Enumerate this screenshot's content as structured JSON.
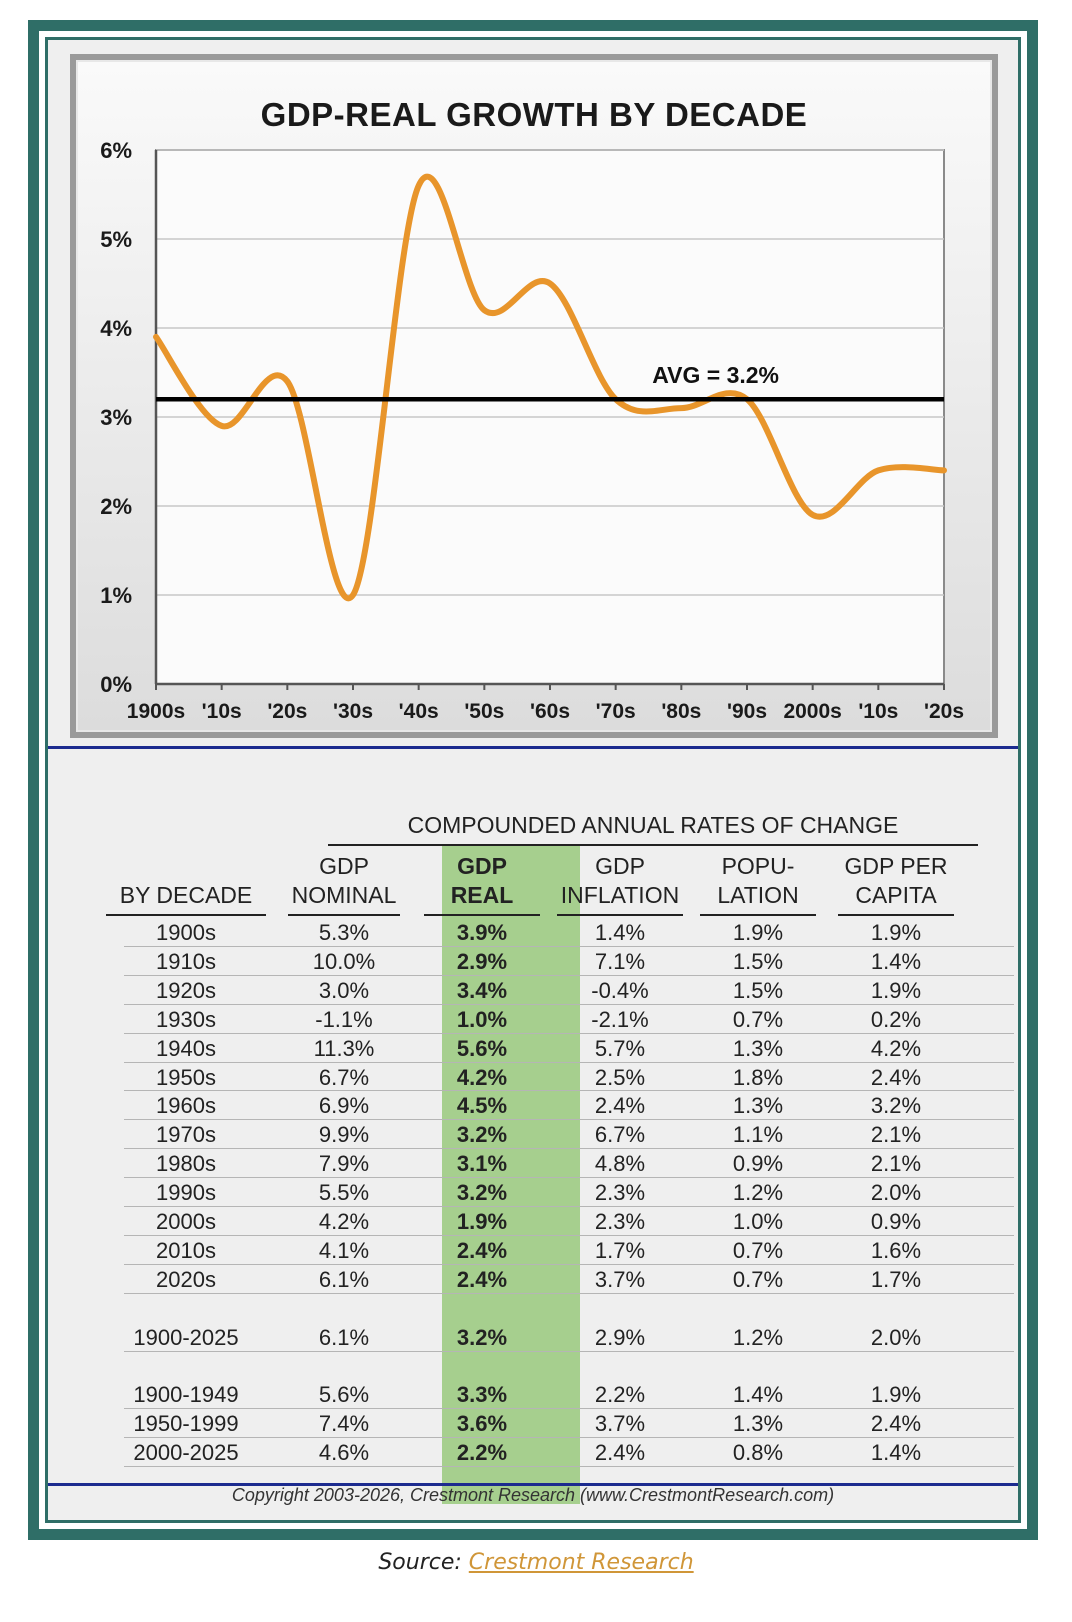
{
  "chart_data": {
    "type": "line",
    "title": "GDP-REAL GROWTH BY DECADE",
    "categories": [
      "1900s",
      "'10s",
      "'20s",
      "'30s",
      "'40s",
      "'50s",
      "'60s",
      "'70s",
      "'80s",
      "'90s",
      "2000s",
      "'10s",
      "'20s"
    ],
    "series": [
      {
        "values": [
          3.9,
          2.9,
          3.4,
          1.0,
          5.6,
          4.2,
          4.5,
          3.2,
          3.1,
          3.2,
          1.9,
          2.4,
          2.4
        ]
      }
    ],
    "y_ticks": [
      "0%",
      "1%",
      "2%",
      "3%",
      "4%",
      "5%",
      "6%"
    ],
    "ylim": [
      0,
      6
    ],
    "average": {
      "value": 3.2,
      "label": "AVG = 3.2%"
    },
    "grid": true,
    "colors": {
      "line": "#e8952b",
      "average": "#000000",
      "grid": "#c8c8c8"
    }
  },
  "table": {
    "super_header": "COMPOUNDED ANNUAL RATES OF CHANGE",
    "headers": [
      [
        "BY DECADE"
      ],
      [
        "GDP",
        "NOMINAL"
      ],
      [
        "GDP",
        "REAL"
      ],
      [
        "GDP",
        "INFLATION"
      ],
      [
        "POPU-",
        "LATION"
      ],
      [
        "GDP PER",
        "CAPITA"
      ]
    ],
    "rows": [
      [
        "1900s",
        "5.3%",
        "3.9%",
        "1.4%",
        "1.9%",
        "1.9%"
      ],
      [
        "1910s",
        "10.0%",
        "2.9%",
        "7.1%",
        "1.5%",
        "1.4%"
      ],
      [
        "1920s",
        "3.0%",
        "3.4%",
        "-0.4%",
        "1.5%",
        "1.9%"
      ],
      [
        "1930s",
        "-1.1%",
        "1.0%",
        "-2.1%",
        "0.7%",
        "0.2%"
      ],
      [
        "1940s",
        "11.3%",
        "5.6%",
        "5.7%",
        "1.3%",
        "4.2%"
      ],
      [
        "1950s",
        "6.7%",
        "4.2%",
        "2.5%",
        "1.8%",
        "2.4%"
      ],
      [
        "1960s",
        "6.9%",
        "4.5%",
        "2.4%",
        "1.3%",
        "3.2%"
      ],
      [
        "1970s",
        "9.9%",
        "3.2%",
        "6.7%",
        "1.1%",
        "2.1%"
      ],
      [
        "1980s",
        "7.9%",
        "3.1%",
        "4.8%",
        "0.9%",
        "2.1%"
      ],
      [
        "1990s",
        "5.5%",
        "3.2%",
        "2.3%",
        "1.2%",
        "2.0%"
      ],
      [
        "2000s",
        "4.2%",
        "1.9%",
        "2.3%",
        "1.0%",
        "0.9%"
      ],
      [
        "2010s",
        "4.1%",
        "2.4%",
        "1.7%",
        "0.7%",
        "1.6%"
      ],
      [
        "2020s",
        "6.1%",
        "2.4%",
        "3.7%",
        "0.7%",
        "1.7%"
      ],
      [
        "1900-2025",
        "6.1%",
        "3.2%",
        "2.9%",
        "1.2%",
        "2.0%"
      ],
      [
        "1900-1949",
        "5.6%",
        "3.3%",
        "2.2%",
        "1.4%",
        "1.9%"
      ],
      [
        "1950-1999",
        "7.4%",
        "3.6%",
        "3.7%",
        "1.3%",
        "2.4%"
      ],
      [
        "2000-2025",
        "4.6%",
        "2.2%",
        "2.4%",
        "0.8%",
        "1.4%"
      ]
    ],
    "highlight_color": "#a6cf8e"
  },
  "copyright": "Copyright 2003-2026, Crestmont Research (www.CrestmontResearch.com)",
  "source": {
    "prefix": "Source: ",
    "link_text": "Crestmont Research"
  }
}
